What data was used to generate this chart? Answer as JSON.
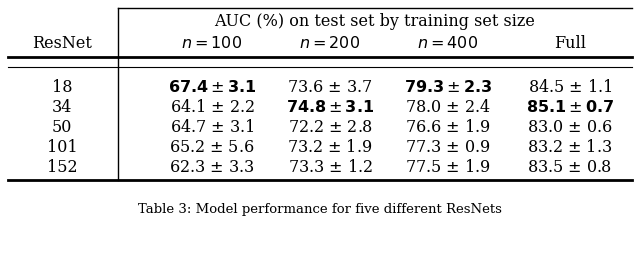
{
  "title_top": "AUC (%) on test set by training set size",
  "col_header_left": "ResNet",
  "col_headers": [
    "n = 100",
    "n = 200",
    "n = 400",
    "Full"
  ],
  "resnet_labels": [
    "18",
    "34",
    "50",
    "101",
    "152"
  ],
  "plain_values": [
    [
      "67.4",
      "3.1",
      "73.6",
      "3.7",
      "79.3",
      "2.3",
      "84.5",
      "1.1"
    ],
    [
      "64.1",
      "2.2",
      "74.8",
      "3.1",
      "78.0",
      "2.4",
      "85.1",
      "0.7"
    ],
    [
      "64.7",
      "3.1",
      "72.2",
      "2.8",
      "76.6",
      "1.9",
      "83.0",
      "0.6"
    ],
    [
      "65.2",
      "5.6",
      "73.2",
      "1.9",
      "77.3",
      "0.9",
      "83.2",
      "1.3"
    ],
    [
      "62.3",
      "3.3",
      "73.3",
      "1.2",
      "77.5",
      "1.9",
      "83.5",
      "0.8"
    ]
  ],
  "bold_map": [
    [
      0,
      2
    ],
    [
      1,
      3
    ],
    [],
    [],
    []
  ],
  "caption": "Table 3: Model performance for five different ResNets",
  "bg_color": "#ffffff",
  "text_color": "#000000",
  "line_color": "#000000"
}
